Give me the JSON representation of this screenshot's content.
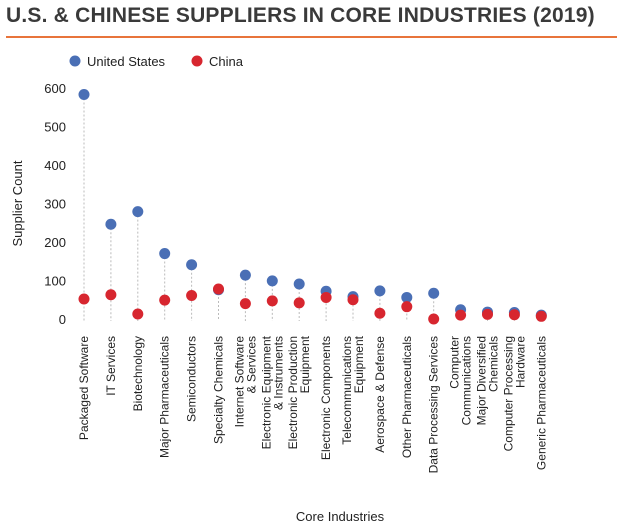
{
  "title": "U.S. & CHINESE SUPPLIERS IN CORE INDUSTRIES (2019)",
  "colors": {
    "title_rule": "#e8743b",
    "us": "#4a6fb5",
    "china": "#d7262f",
    "dropline": "#bbbbbb"
  },
  "chart_data": {
    "type": "scatter",
    "title": "U.S. & CHINESE SUPPLIERS IN CORE INDUSTRIES (2019)",
    "xlabel": "Core Industries",
    "ylabel": "Supplier Count",
    "ylim": [
      0,
      600
    ],
    "yticks": [
      0,
      100,
      200,
      300,
      400,
      500,
      600
    ],
    "grid": false,
    "legend_position": "top-left",
    "categories": [
      [
        "Packaged Software"
      ],
      [
        "IT Services"
      ],
      [
        "Biotechnology"
      ],
      [
        "Major Pharmaceuticals"
      ],
      [
        "Semiconductors"
      ],
      [
        "Specialty Chemicals"
      ],
      [
        "Internet Software",
        "& Services"
      ],
      [
        "Electronic Equipment",
        "& Instruments"
      ],
      [
        "Electronic Production",
        "Equipment"
      ],
      [
        "Electronic Components"
      ],
      [
        "Telecommunications",
        "Equipment"
      ],
      [
        "Aerospace & Defense"
      ],
      [
        "Other Pharmaceuticals"
      ],
      [
        "Data Processing Services"
      ],
      [
        "Computer",
        "Communications"
      ],
      [
        "Major Diversified",
        "Chemicals"
      ],
      [
        "Computer Processing",
        "Hardware"
      ],
      [
        "Generic Pharmaceuticals"
      ]
    ],
    "series": [
      {
        "name": "United States",
        "values": [
          583,
          246,
          279,
          170,
          141,
          76,
          114,
          99,
          91,
          72,
          58,
          73,
          56,
          67,
          24,
          18,
          17,
          10
        ]
      },
      {
        "name": "China",
        "values": [
          52,
          63,
          13,
          49,
          61,
          78,
          40,
          47,
          42,
          56,
          50,
          15,
          32,
          0,
          10,
          12,
          11,
          7
        ]
      }
    ]
  }
}
